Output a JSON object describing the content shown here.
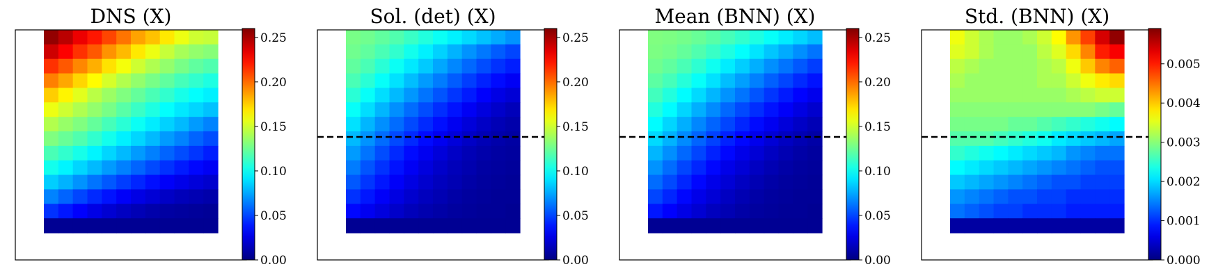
{
  "chart_data": [
    {
      "type": "heatmap",
      "title": "DNS (X)",
      "colormap": "jet",
      "clim": [
        0.0,
        0.26
      ],
      "colorbar_ticks": [
        "0.00",
        "0.05",
        "0.10",
        "0.15",
        "0.20",
        "0.25"
      ],
      "dashed_line": false,
      "rows": [
        [
          0.255,
          0.245,
          0.232,
          0.222,
          0.21,
          0.198,
          0.186,
          0.178,
          0.168,
          0.158,
          0.15,
          0.148
        ],
        [
          0.24,
          0.228,
          0.215,
          0.205,
          0.19,
          0.18,
          0.168,
          0.158,
          0.148,
          0.14,
          0.135,
          0.132
        ],
        [
          0.215,
          0.205,
          0.193,
          0.183,
          0.17,
          0.16,
          0.15,
          0.142,
          0.135,
          0.128,
          0.122,
          0.118
        ],
        [
          0.195,
          0.185,
          0.173,
          0.163,
          0.152,
          0.143,
          0.135,
          0.128,
          0.122,
          0.115,
          0.11,
          0.105
        ],
        [
          0.175,
          0.165,
          0.155,
          0.145,
          0.137,
          0.13,
          0.123,
          0.116,
          0.11,
          0.103,
          0.098,
          0.094
        ],
        [
          0.158,
          0.15,
          0.142,
          0.135,
          0.128,
          0.12,
          0.112,
          0.105,
          0.098,
          0.092,
          0.087,
          0.082
        ],
        [
          0.143,
          0.136,
          0.13,
          0.123,
          0.115,
          0.108,
          0.1,
          0.093,
          0.086,
          0.08,
          0.072,
          0.066
        ],
        [
          0.13,
          0.124,
          0.118,
          0.11,
          0.102,
          0.094,
          0.087,
          0.08,
          0.072,
          0.066,
          0.058,
          0.052
        ],
        [
          0.116,
          0.11,
          0.103,
          0.095,
          0.087,
          0.08,
          0.072,
          0.065,
          0.058,
          0.052,
          0.046,
          0.04
        ],
        [
          0.102,
          0.095,
          0.087,
          0.08,
          0.072,
          0.065,
          0.058,
          0.051,
          0.045,
          0.039,
          0.034,
          0.03
        ],
        [
          0.085,
          0.078,
          0.07,
          0.062,
          0.055,
          0.048,
          0.042,
          0.036,
          0.031,
          0.027,
          0.023,
          0.02
        ],
        [
          0.066,
          0.058,
          0.05,
          0.043,
          0.037,
          0.031,
          0.026,
          0.022,
          0.018,
          0.015,
          0.013,
          0.011
        ],
        [
          0.045,
          0.038,
          0.032,
          0.026,
          0.021,
          0.017,
          0.014,
          0.011,
          0.009,
          0.008,
          0.007,
          0.006
        ],
        [
          0.005,
          0.005,
          0.005,
          0.005,
          0.005,
          0.005,
          0.005,
          0.005,
          0.005,
          0.005,
          0.005,
          0.005
        ]
      ]
    },
    {
      "type": "heatmap",
      "title": "Sol. (det) (X)",
      "colormap": "jet",
      "clim": [
        0.0,
        0.26
      ],
      "colorbar_ticks": [
        "0.00",
        "0.05",
        "0.10",
        "0.15",
        "0.20",
        "0.25"
      ],
      "dashed_line": true,
      "rows": [
        [
          0.128,
          0.126,
          0.122,
          0.118,
          0.112,
          0.106,
          0.1,
          0.094,
          0.088,
          0.082,
          0.076,
          0.07
        ],
        [
          0.126,
          0.122,
          0.116,
          0.11,
          0.102,
          0.094,
          0.086,
          0.078,
          0.07,
          0.063,
          0.056,
          0.05
        ],
        [
          0.122,
          0.116,
          0.108,
          0.1,
          0.092,
          0.084,
          0.075,
          0.067,
          0.059,
          0.052,
          0.045,
          0.04
        ],
        [
          0.116,
          0.108,
          0.099,
          0.09,
          0.081,
          0.072,
          0.064,
          0.056,
          0.048,
          0.041,
          0.035,
          0.03
        ],
        [
          0.108,
          0.099,
          0.089,
          0.08,
          0.071,
          0.062,
          0.054,
          0.046,
          0.039,
          0.032,
          0.026,
          0.022
        ],
        [
          0.099,
          0.089,
          0.079,
          0.069,
          0.06,
          0.052,
          0.044,
          0.037,
          0.03,
          0.024,
          0.019,
          0.015
        ],
        [
          0.09,
          0.079,
          0.069,
          0.06,
          0.051,
          0.043,
          0.036,
          0.029,
          0.023,
          0.018,
          0.014,
          0.011
        ],
        [
          0.08,
          0.07,
          0.06,
          0.051,
          0.043,
          0.035,
          0.029,
          0.023,
          0.018,
          0.014,
          0.011,
          0.009
        ],
        [
          0.072,
          0.062,
          0.052,
          0.043,
          0.035,
          0.029,
          0.023,
          0.018,
          0.014,
          0.011,
          0.009,
          0.008
        ],
        [
          0.064,
          0.054,
          0.045,
          0.037,
          0.03,
          0.024,
          0.019,
          0.015,
          0.012,
          0.009,
          0.008,
          0.007
        ],
        [
          0.055,
          0.046,
          0.038,
          0.031,
          0.025,
          0.02,
          0.016,
          0.013,
          0.01,
          0.008,
          0.007,
          0.006
        ],
        [
          0.045,
          0.038,
          0.031,
          0.025,
          0.02,
          0.016,
          0.013,
          0.01,
          0.008,
          0.007,
          0.006,
          0.006
        ],
        [
          0.034,
          0.029,
          0.024,
          0.019,
          0.015,
          0.012,
          0.01,
          0.008,
          0.007,
          0.006,
          0.006,
          0.005
        ],
        [
          0.005,
          0.005,
          0.005,
          0.005,
          0.005,
          0.005,
          0.005,
          0.005,
          0.005,
          0.005,
          0.005,
          0.005
        ]
      ]
    },
    {
      "type": "heatmap",
      "title": "Mean (BNN) (X)",
      "colormap": "jet",
      "clim": [
        0.0,
        0.26
      ],
      "colorbar_ticks": [
        "0.00",
        "0.05",
        "0.10",
        "0.15",
        "0.20",
        "0.25"
      ],
      "dashed_line": true,
      "rows": [
        [
          0.13,
          0.129,
          0.127,
          0.124,
          0.12,
          0.115,
          0.11,
          0.105,
          0.099,
          0.093,
          0.087,
          0.081
        ],
        [
          0.129,
          0.127,
          0.123,
          0.118,
          0.112,
          0.105,
          0.098,
          0.091,
          0.083,
          0.076,
          0.069,
          0.062
        ],
        [
          0.126,
          0.122,
          0.116,
          0.109,
          0.101,
          0.093,
          0.085,
          0.077,
          0.069,
          0.062,
          0.055,
          0.048
        ],
        [
          0.121,
          0.115,
          0.107,
          0.099,
          0.09,
          0.081,
          0.073,
          0.065,
          0.057,
          0.05,
          0.043,
          0.037
        ],
        [
          0.114,
          0.106,
          0.097,
          0.088,
          0.079,
          0.07,
          0.062,
          0.054,
          0.046,
          0.039,
          0.033,
          0.028
        ],
        [
          0.106,
          0.097,
          0.087,
          0.077,
          0.068,
          0.059,
          0.051,
          0.044,
          0.037,
          0.031,
          0.025,
          0.02
        ],
        [
          0.097,
          0.087,
          0.077,
          0.067,
          0.058,
          0.05,
          0.042,
          0.035,
          0.029,
          0.023,
          0.018,
          0.014
        ],
        [
          0.088,
          0.078,
          0.068,
          0.058,
          0.049,
          0.041,
          0.034,
          0.028,
          0.022,
          0.017,
          0.013,
          0.01
        ],
        [
          0.079,
          0.069,
          0.059,
          0.05,
          0.041,
          0.034,
          0.027,
          0.022,
          0.017,
          0.013,
          0.01,
          0.008
        ],
        [
          0.07,
          0.06,
          0.05,
          0.042,
          0.034,
          0.027,
          0.022,
          0.017,
          0.013,
          0.01,
          0.008,
          0.007
        ],
        [
          0.06,
          0.051,
          0.042,
          0.034,
          0.027,
          0.022,
          0.017,
          0.013,
          0.01,
          0.008,
          0.007,
          0.006
        ],
        [
          0.05,
          0.042,
          0.034,
          0.027,
          0.022,
          0.017,
          0.013,
          0.01,
          0.008,
          0.007,
          0.006,
          0.006
        ],
        [
          0.038,
          0.032,
          0.026,
          0.021,
          0.016,
          0.013,
          0.01,
          0.008,
          0.007,
          0.006,
          0.006,
          0.005
        ],
        [
          0.005,
          0.005,
          0.005,
          0.005,
          0.005,
          0.005,
          0.005,
          0.005,
          0.005,
          0.005,
          0.005,
          0.005
        ]
      ]
    },
    {
      "type": "heatmap",
      "title": "Std. (BNN) (X)",
      "colormap": "jet",
      "clim": [
        0.0,
        0.0059
      ],
      "colorbar_ticks": [
        "0.000",
        "0.001",
        "0.002",
        "0.003",
        "0.004",
        "0.005"
      ],
      "dashed_line": true,
      "rows": [
        [
          0.0036,
          0.0034,
          0.0032,
          0.0031,
          0.0031,
          0.0032,
          0.0034,
          0.0037,
          0.0043,
          0.0048,
          0.0054,
          0.0058
        ],
        [
          0.0035,
          0.0034,
          0.0032,
          0.0031,
          0.0031,
          0.0031,
          0.0033,
          0.0035,
          0.0039,
          0.0044,
          0.005,
          0.0052
        ],
        [
          0.0033,
          0.0032,
          0.0031,
          0.0031,
          0.0031,
          0.0031,
          0.0032,
          0.0033,
          0.0036,
          0.004,
          0.0044,
          0.0046
        ],
        [
          0.0032,
          0.0031,
          0.0031,
          0.0031,
          0.0031,
          0.0031,
          0.0032,
          0.0032,
          0.0034,
          0.0036,
          0.0038,
          0.0039
        ],
        [
          0.0031,
          0.0031,
          0.0031,
          0.0031,
          0.0031,
          0.0031,
          0.0031,
          0.0031,
          0.0032,
          0.0033,
          0.0034,
          0.0034
        ],
        [
          0.003,
          0.003,
          0.003,
          0.003,
          0.003,
          0.003,
          0.003,
          0.003,
          0.003,
          0.003,
          0.0029,
          0.0028
        ],
        [
          0.0029,
          0.0029,
          0.0029,
          0.0029,
          0.0028,
          0.0028,
          0.0027,
          0.0026,
          0.0025,
          0.0024,
          0.0023,
          0.0022
        ],
        [
          0.0027,
          0.0027,
          0.0027,
          0.0026,
          0.0025,
          0.0024,
          0.0023,
          0.0021,
          0.002,
          0.0019,
          0.0018,
          0.0017
        ],
        [
          0.0025,
          0.0024,
          0.0023,
          0.0022,
          0.0021,
          0.002,
          0.0019,
          0.0018,
          0.0016,
          0.0015,
          0.0014,
          0.0014
        ],
        [
          0.0022,
          0.0021,
          0.002,
          0.0019,
          0.0018,
          0.0017,
          0.0016,
          0.0015,
          0.0014,
          0.0013,
          0.0012,
          0.0012
        ],
        [
          0.0019,
          0.0018,
          0.0017,
          0.0016,
          0.0015,
          0.0014,
          0.0013,
          0.0012,
          0.0012,
          0.0011,
          0.0011,
          0.0011
        ],
        [
          0.0016,
          0.0015,
          0.0014,
          0.0013,
          0.0012,
          0.0012,
          0.0011,
          0.0011,
          0.001,
          0.001,
          0.001,
          0.001
        ],
        [
          0.0014,
          0.0013,
          0.0012,
          0.0011,
          0.0011,
          0.001,
          0.001,
          0.001,
          0.0009,
          0.0009,
          0.0009,
          0.0009
        ],
        [
          0.0002,
          0.0002,
          0.0002,
          0.0002,
          0.0002,
          0.0002,
          0.0002,
          0.0002,
          0.0002,
          0.0002,
          0.0002,
          0.0002
        ]
      ]
    }
  ]
}
